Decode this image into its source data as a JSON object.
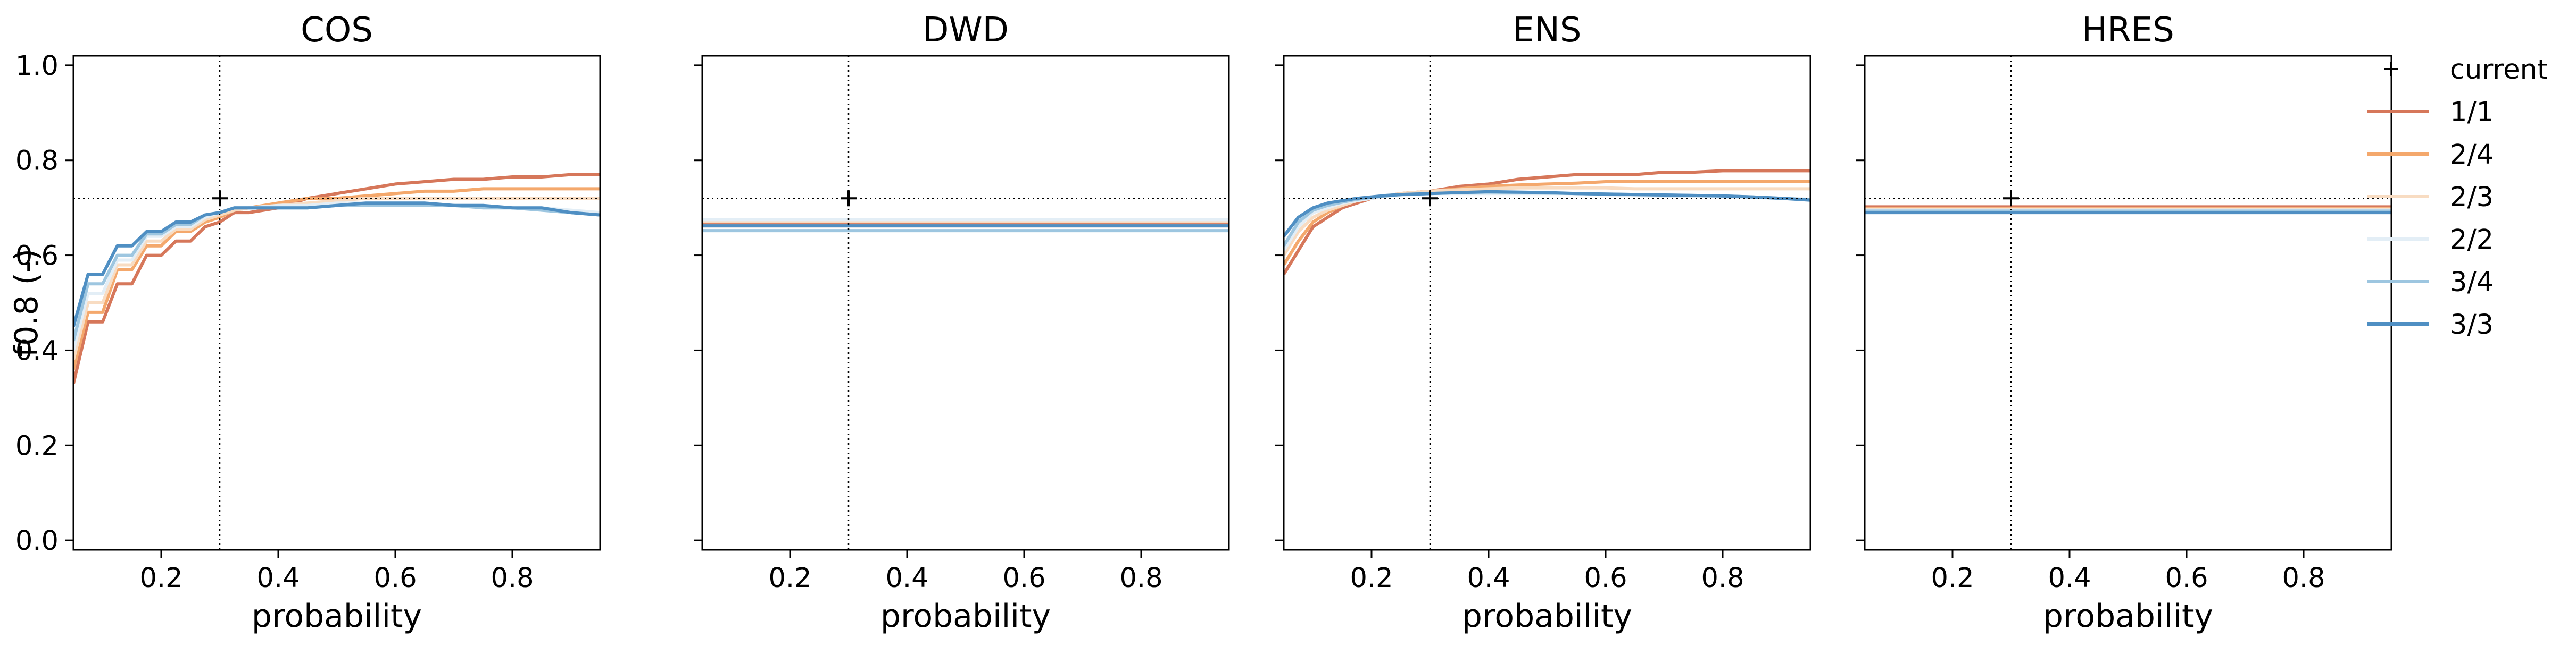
{
  "chart_data": {
    "type": "line",
    "ylabel": "f0.8 (-)",
    "xlabel": "probability",
    "xlim": [
      0.05,
      0.95
    ],
    "ylim": [
      -0.02,
      1.02
    ],
    "xticks": [
      0.2,
      0.4,
      0.6,
      0.8
    ],
    "xtick_labels": [
      "0.2",
      "0.4",
      "0.6",
      "0.8"
    ],
    "yticks": [
      0.0,
      0.2,
      0.4,
      0.6,
      0.8,
      1.0
    ],
    "ytick_labels": [
      "0.0",
      "0.2",
      "0.4",
      "0.6",
      "0.8",
      "1.0"
    ],
    "reference": {
      "name": "current",
      "x": 0.3,
      "y": 0.72
    },
    "legend": {
      "position": "outside-right"
    },
    "series_styles": [
      {
        "name": "1/1",
        "color": "#d6775a"
      },
      {
        "name": "2/4",
        "color": "#f4a86c"
      },
      {
        "name": "2/3",
        "color": "#f8dcc2"
      },
      {
        "name": "2/2",
        "color": "#e3eef6"
      },
      {
        "name": "3/4",
        "color": "#9dc6e0"
      },
      {
        "name": "3/3",
        "color": "#4f8fc3"
      }
    ],
    "panels": [
      {
        "title": "COS",
        "x": [
          0.05,
          0.075,
          0.1,
          0.125,
          0.15,
          0.175,
          0.2,
          0.225,
          0.25,
          0.275,
          0.3,
          0.325,
          0.35,
          0.4,
          0.45,
          0.5,
          0.55,
          0.6,
          0.65,
          0.7,
          0.75,
          0.8,
          0.85,
          0.9,
          0.95
        ],
        "series": [
          {
            "name": "1/1",
            "values": [
              0.33,
              0.46,
              0.46,
              0.54,
              0.54,
              0.6,
              0.6,
              0.63,
              0.63,
              0.66,
              0.67,
              0.69,
              0.69,
              0.7,
              0.72,
              0.73,
              0.74,
              0.75,
              0.755,
              0.76,
              0.76,
              0.765,
              0.765,
              0.77,
              0.77
            ]
          },
          {
            "name": "2/4",
            "values": [
              0.36,
              0.48,
              0.48,
              0.57,
              0.57,
              0.62,
              0.62,
              0.65,
              0.65,
              0.67,
              0.68,
              0.695,
              0.7,
              0.71,
              0.72,
              0.72,
              0.725,
              0.73,
              0.735,
              0.735,
              0.74,
              0.74,
              0.74,
              0.74,
              0.74
            ]
          },
          {
            "name": "2/3",
            "values": [
              0.38,
              0.5,
              0.5,
              0.58,
              0.58,
              0.63,
              0.63,
              0.655,
              0.655,
              0.675,
              0.685,
              0.695,
              0.7,
              0.705,
              0.71,
              0.715,
              0.72,
              0.72,
              0.72,
              0.72,
              0.72,
              0.72,
              0.72,
              0.72,
              0.72
            ]
          },
          {
            "name": "2/2",
            "values": [
              0.4,
              0.52,
              0.52,
              0.59,
              0.59,
              0.64,
              0.64,
              0.66,
              0.66,
              0.68,
              0.69,
              0.7,
              0.7,
              0.705,
              0.705,
              0.71,
              0.71,
              0.71,
              0.71,
              0.705,
              0.705,
              0.7,
              0.7,
              0.695,
              0.69
            ]
          },
          {
            "name": "3/4",
            "values": [
              0.42,
              0.54,
              0.54,
              0.6,
              0.6,
              0.645,
              0.645,
              0.665,
              0.665,
              0.685,
              0.69,
              0.7,
              0.7,
              0.7,
              0.7,
              0.705,
              0.705,
              0.705,
              0.705,
              0.705,
              0.7,
              0.7,
              0.695,
              0.69,
              0.685
            ]
          },
          {
            "name": "3/3",
            "values": [
              0.45,
              0.56,
              0.56,
              0.62,
              0.62,
              0.65,
              0.65,
              0.67,
              0.67,
              0.685,
              0.69,
              0.7,
              0.7,
              0.7,
              0.7,
              0.705,
              0.71,
              0.71,
              0.71,
              0.705,
              0.705,
              0.7,
              0.7,
              0.69,
              0.685
            ]
          }
        ]
      },
      {
        "title": "DWD",
        "x": [
          0.05,
          0.95
        ],
        "series": [
          {
            "name": "1/1",
            "values": [
              0.665,
              0.665
            ]
          },
          {
            "name": "2/4",
            "values": [
              0.662,
              0.662
            ]
          },
          {
            "name": "2/3",
            "values": [
              0.671,
              0.671
            ]
          },
          {
            "name": "2/2",
            "values": [
              0.675,
              0.675
            ]
          },
          {
            "name": "3/4",
            "values": [
              0.652,
              0.652
            ]
          },
          {
            "name": "3/3",
            "values": [
              0.662,
              0.662
            ]
          }
        ]
      },
      {
        "title": "ENS",
        "x": [
          0.05,
          0.075,
          0.1,
          0.125,
          0.15,
          0.175,
          0.2,
          0.225,
          0.25,
          0.3,
          0.35,
          0.4,
          0.45,
          0.5,
          0.55,
          0.6,
          0.65,
          0.7,
          0.75,
          0.8,
          0.85,
          0.9,
          0.95
        ],
        "series": [
          {
            "name": "1/1",
            "values": [
              0.56,
              0.61,
              0.66,
              0.68,
              0.7,
              0.71,
              0.72,
              0.725,
              0.73,
              0.735,
              0.745,
              0.75,
              0.76,
              0.765,
              0.77,
              0.77,
              0.77,
              0.775,
              0.775,
              0.778,
              0.778,
              0.778,
              0.778
            ]
          },
          {
            "name": "2/4",
            "values": [
              0.58,
              0.63,
              0.67,
              0.69,
              0.705,
              0.715,
              0.72,
              0.725,
              0.73,
              0.735,
              0.74,
              0.745,
              0.748,
              0.75,
              0.752,
              0.755,
              0.755,
              0.755,
              0.755,
              0.755,
              0.755,
              0.755,
              0.755
            ]
          },
          {
            "name": "2/3",
            "values": [
              0.6,
              0.65,
              0.68,
              0.695,
              0.705,
              0.715,
              0.72,
              0.725,
              0.73,
              0.735,
              0.738,
              0.74,
              0.742,
              0.742,
              0.742,
              0.742,
              0.74,
              0.74,
              0.74,
              0.74,
              0.74,
              0.74,
              0.74
            ]
          },
          {
            "name": "2/2",
            "values": [
              0.61,
              0.66,
              0.69,
              0.7,
              0.71,
              0.715,
              0.72,
              0.725,
              0.727,
              0.73,
              0.73,
              0.73,
              0.73,
              0.73,
              0.73,
              0.728,
              0.726,
              0.725,
              0.724,
              0.723,
              0.722,
              0.72,
              0.718
            ]
          },
          {
            "name": "3/4",
            "values": [
              0.62,
              0.67,
              0.695,
              0.705,
              0.712,
              0.718,
              0.722,
              0.725,
              0.728,
              0.73,
              0.732,
              0.733,
              0.732,
              0.731,
              0.73,
              0.729,
              0.728,
              0.727,
              0.726,
              0.725,
              0.723,
              0.72,
              0.717
            ]
          },
          {
            "name": "3/3",
            "values": [
              0.64,
              0.68,
              0.7,
              0.71,
              0.715,
              0.72,
              0.723,
              0.726,
              0.728,
              0.73,
              0.732,
              0.734,
              0.733,
              0.732,
              0.73,
              0.729,
              0.728,
              0.727,
              0.726,
              0.725,
              0.723,
              0.72,
              0.716
            ]
          }
        ]
      },
      {
        "title": "HRES",
        "x": [
          0.05,
          0.95
        ],
        "series": [
          {
            "name": "1/1",
            "values": [
              0.702,
              0.702
            ]
          },
          {
            "name": "2/4",
            "values": [
              0.699,
              0.699
            ]
          },
          {
            "name": "2/3",
            "values": [
              0.697,
              0.697
            ]
          },
          {
            "name": "2/2",
            "values": [
              0.695,
              0.695
            ]
          },
          {
            "name": "3/4",
            "values": [
              0.693,
              0.693
            ]
          },
          {
            "name": "3/3",
            "values": [
              0.69,
              0.69
            ]
          }
        ]
      }
    ]
  }
}
